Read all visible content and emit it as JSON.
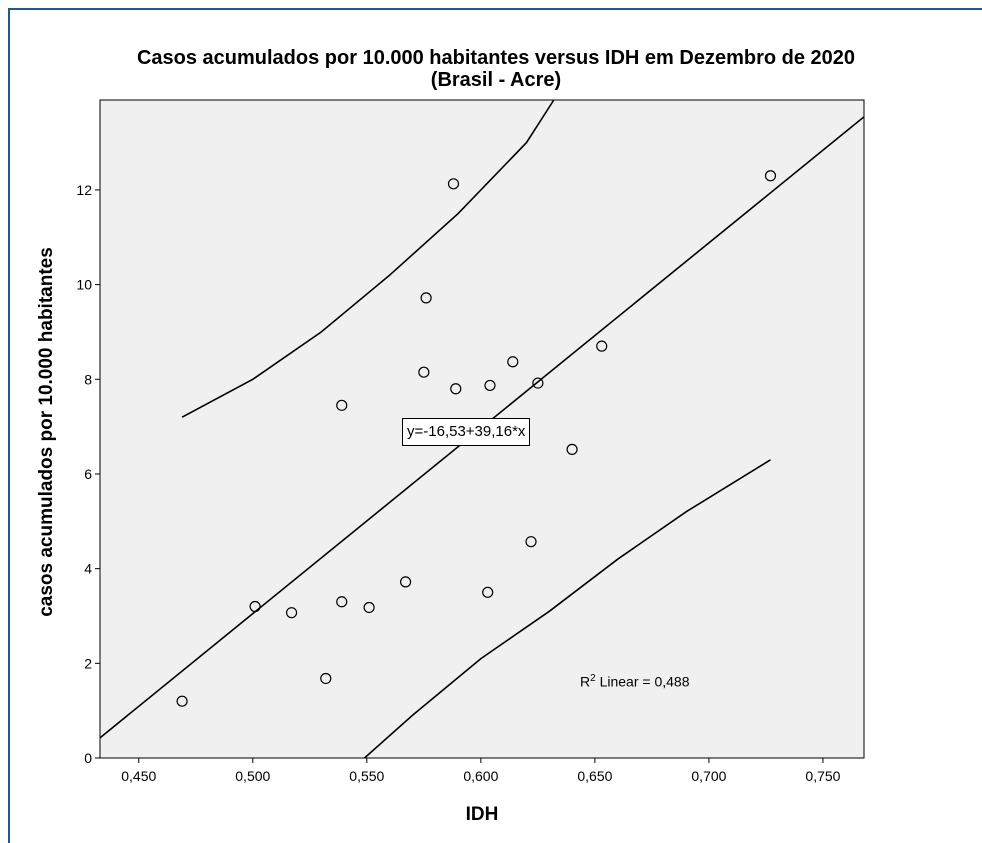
{
  "chart_data": {
    "type": "scatter",
    "title": "Casos acumulados por 10.000 habitantes versus IDH em Dezembro de 2020",
    "subtitle": "(Brasil - Acre)",
    "xlabel": "IDH",
    "ylabel": "casos acumulados  por 10.000 habitantes",
    "xlim": [
      0.433,
      0.768
    ],
    "ylim": [
      0,
      13.9
    ],
    "x_ticks": [
      0.45,
      0.5,
      0.55,
      0.6,
      0.65,
      0.7,
      0.75
    ],
    "x_tick_labels": [
      "0,450",
      "0,500",
      "0,550",
      "0,600",
      "0,650",
      "0,700",
      "0,750"
    ],
    "y_ticks": [
      0,
      2,
      4,
      6,
      8,
      10,
      12
    ],
    "y_tick_labels": [
      "0",
      "2",
      "4",
      "6",
      "8",
      "10",
      "12"
    ],
    "grid": false,
    "points": [
      {
        "x": 0.469,
        "y": 1.2
      },
      {
        "x": 0.501,
        "y": 3.2
      },
      {
        "x": 0.517,
        "y": 3.07
      },
      {
        "x": 0.532,
        "y": 1.68
      },
      {
        "x": 0.539,
        "y": 3.3
      },
      {
        "x": 0.539,
        "y": 7.45
      },
      {
        "x": 0.551,
        "y": 3.18
      },
      {
        "x": 0.567,
        "y": 3.72
      },
      {
        "x": 0.575,
        "y": 8.15
      },
      {
        "x": 0.576,
        "y": 9.72
      },
      {
        "x": 0.588,
        "y": 12.13
      },
      {
        "x": 0.589,
        "y": 7.8
      },
      {
        "x": 0.603,
        "y": 3.5
      },
      {
        "x": 0.604,
        "y": 7.87
      },
      {
        "x": 0.614,
        "y": 8.37
      },
      {
        "x": 0.622,
        "y": 4.57
      },
      {
        "x": 0.625,
        "y": 7.92
      },
      {
        "x": 0.64,
        "y": 6.52
      },
      {
        "x": 0.653,
        "y": 8.7
      },
      {
        "x": 0.727,
        "y": 12.3
      }
    ],
    "fit": {
      "intercept": -16.53,
      "slope": 39.16
    },
    "upper_band": [
      {
        "x": 0.469,
        "y": 7.2
      },
      {
        "x": 0.5,
        "y": 8.0
      },
      {
        "x": 0.53,
        "y": 9.0
      },
      {
        "x": 0.56,
        "y": 10.2
      },
      {
        "x": 0.59,
        "y": 11.5
      },
      {
        "x": 0.62,
        "y": 13.0
      },
      {
        "x": 0.632,
        "y": 13.9
      }
    ],
    "lower_band": [
      {
        "x": 0.549,
        "y": 0.0
      },
      {
        "x": 0.57,
        "y": 0.9
      },
      {
        "x": 0.6,
        "y": 2.1
      },
      {
        "x": 0.63,
        "y": 3.1
      },
      {
        "x": 0.66,
        "y": 4.2
      },
      {
        "x": 0.69,
        "y": 5.2
      },
      {
        "x": 0.727,
        "y": 6.3
      }
    ],
    "equation_label": "y=-16,53+39,16*x",
    "r2_label_prefix": "R",
    "r2_label_sup": "2",
    "r2_label_suffix": " Linear = 0,488",
    "plot_background": "#f0f0f0",
    "frame_color": "#1f5a8e"
  }
}
